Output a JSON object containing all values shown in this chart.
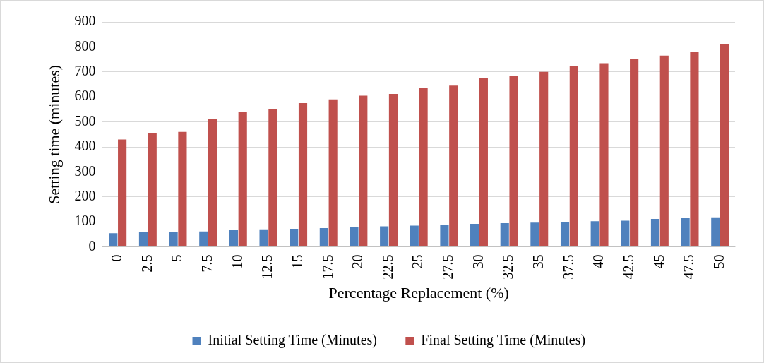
{
  "chart_data": {
    "type": "bar",
    "xlabel": "Percentage Replacement (%)",
    "ylabel": "Setting time (minutes)",
    "categories": [
      "0",
      "2.5",
      "5",
      "7.5",
      "10",
      "12.5",
      "15",
      "17.5",
      "20",
      "22.5",
      "25",
      "27.5",
      "30",
      "32.5",
      "35",
      "37.5",
      "40",
      "42.5",
      "45",
      "47.5",
      "50"
    ],
    "series": [
      {
        "name": "Initial Setting Time (Minutes)",
        "color": "#4f81bd",
        "values": [
          55,
          58,
          60,
          62,
          67,
          70,
          72,
          75,
          78,
          82,
          85,
          88,
          92,
          95,
          97,
          100,
          103,
          105,
          112,
          115,
          118
        ]
      },
      {
        "name": "Final Setting Time (Minutes)",
        "color": "#c0504d",
        "values": [
          430,
          455,
          460,
          510,
          540,
          550,
          575,
          590,
          605,
          612,
          635,
          645,
          675,
          685,
          700,
          725,
          735,
          750,
          765,
          780,
          810
        ]
      }
    ],
    "ylim": [
      0,
      900
    ],
    "yticks": [
      0,
      100,
      200,
      300,
      400,
      500,
      600,
      700,
      800,
      900
    ],
    "grid": "y",
    "legend": "bottom"
  }
}
